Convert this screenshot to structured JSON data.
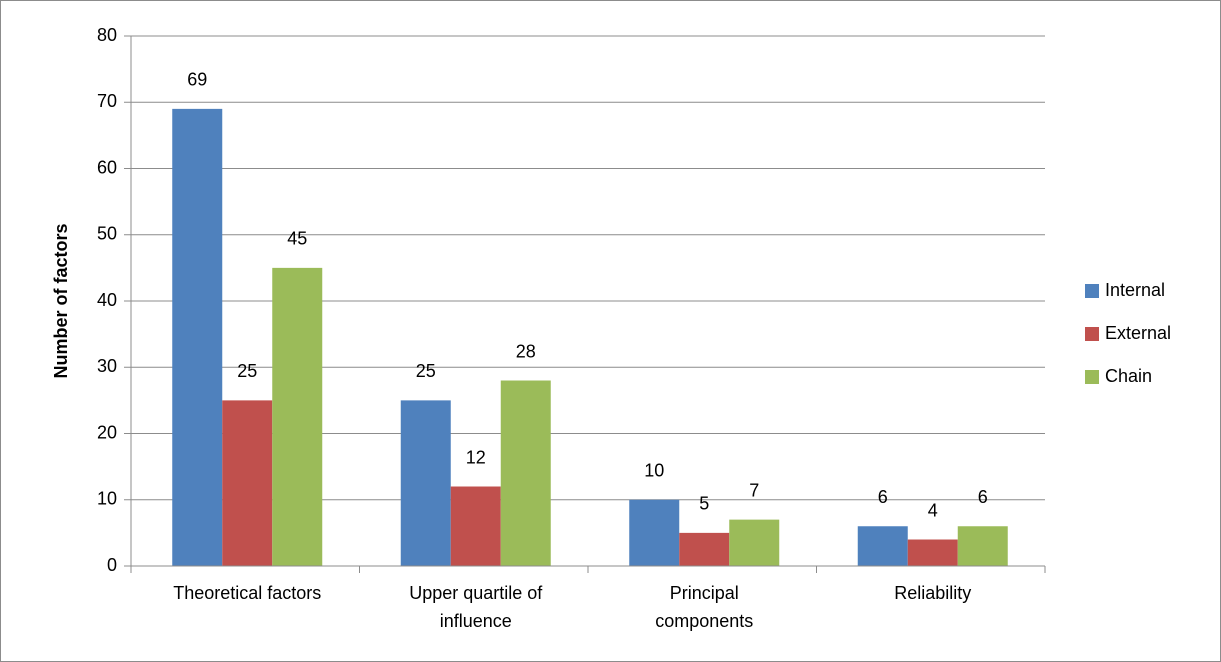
{
  "chart_data": {
    "type": "bar",
    "y_label": "Number of factors",
    "categories": [
      "Theoretical factors",
      "Upper quartile of influence",
      "Principal components",
      "Reliability"
    ],
    "series": [
      {
        "name": "Internal",
        "color": "#4f81bd",
        "values": [
          69,
          25,
          10,
          6
        ]
      },
      {
        "name": "External",
        "color": "#c0504d",
        "values": [
          25,
          12,
          5,
          4
        ]
      },
      {
        "name": "Chain",
        "color": "#9bbb59",
        "values": [
          45,
          28,
          7,
          6
        ]
      }
    ],
    "ylim": [
      0,
      80
    ],
    "yticks": [
      0,
      10,
      20,
      30,
      40,
      50,
      60,
      70,
      80
    ],
    "grid": true,
    "legend": "right"
  }
}
